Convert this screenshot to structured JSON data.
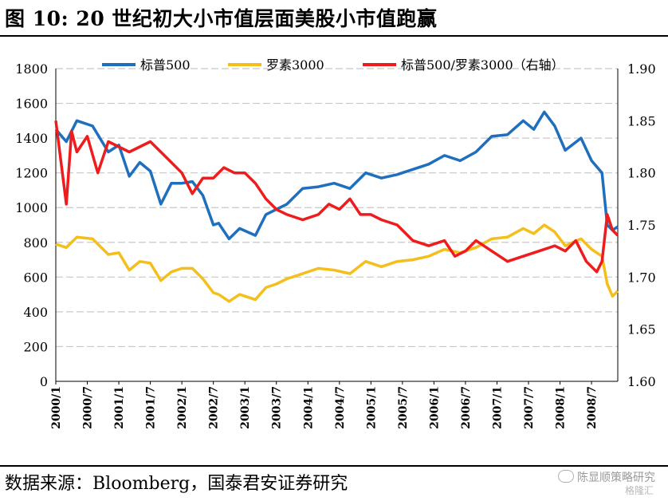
{
  "title": "图 10: 20 世纪初大小市值层面美股小市值跑赢",
  "source": "数据来源：Bloomberg，国泰君安证券研究",
  "watermark": "陈显顺策略研究",
  "watermark2": "格隆汇",
  "watermark_icon": "wechat-icon",
  "chart_data": {
    "type": "line",
    "left_axis": {
      "ylim": [
        0,
        1800
      ],
      "ticks": [
        "0",
        "200",
        "400",
        "600",
        "800",
        "1000",
        "1200",
        "1400",
        "1600",
        "1800"
      ]
    },
    "right_axis": {
      "ylim": [
        1.6,
        1.9
      ],
      "ticks": [
        "1.60",
        "1.65",
        "1.70",
        "1.75",
        "1.80",
        "1.85",
        "1.90"
      ]
    },
    "x_ticks": [
      "2000/1",
      "2000/7",
      "2001/1",
      "2001/7",
      "2002/1",
      "2002/7",
      "2003/1",
      "2003/7",
      "2004/1",
      "2004/7",
      "2005/1",
      "2005/7",
      "2006/1",
      "2006/7",
      "2007/1",
      "2007/7",
      "2008/1",
      "2008/7"
    ],
    "x_range": [
      "2000/1",
      "2008/12"
    ],
    "grid": "horizontal dashed",
    "legend_position": "top",
    "series": [
      {
        "name": "标普500",
        "color": "#1f6fbf",
        "axis": "left",
        "x": [
          "2000/1",
          "2000/3",
          "2000/5",
          "2000/8",
          "2000/11",
          "2001/1",
          "2001/3",
          "2001/5",
          "2001/7",
          "2001/9",
          "2001/11",
          "2002/1",
          "2002/3",
          "2002/5",
          "2002/7",
          "2002/8",
          "2002/10",
          "2002/12",
          "2003/3",
          "2003/5",
          "2003/7",
          "2003/9",
          "2003/12",
          "2004/3",
          "2004/6",
          "2004/9",
          "2004/12",
          "2005/3",
          "2005/6",
          "2005/9",
          "2005/12",
          "2006/3",
          "2006/6",
          "2006/9",
          "2006/12",
          "2007/3",
          "2007/6",
          "2007/8",
          "2007/10",
          "2007/12",
          "2008/2",
          "2008/5",
          "2008/7",
          "2008/9",
          "2008/10",
          "2008/11",
          "2008/12"
        ],
        "values": [
          1450,
          1380,
          1500,
          1470,
          1320,
          1360,
          1180,
          1260,
          1210,
          1020,
          1140,
          1140,
          1150,
          1070,
          900,
          910,
          820,
          880,
          840,
          960,
          990,
          1020,
          1110,
          1120,
          1140,
          1110,
          1200,
          1170,
          1190,
          1220,
          1250,
          1300,
          1270,
          1320,
          1410,
          1420,
          1500,
          1450,
          1550,
          1470,
          1330,
          1400,
          1270,
          1200,
          900,
          870,
          890
        ]
      },
      {
        "name": "罗素3000",
        "color": "#f5bf1b",
        "axis": "left",
        "x": [
          "2000/1",
          "2000/3",
          "2000/5",
          "2000/8",
          "2000/11",
          "2001/1",
          "2001/3",
          "2001/5",
          "2001/7",
          "2001/9",
          "2001/11",
          "2002/1",
          "2002/3",
          "2002/5",
          "2002/7",
          "2002/8",
          "2002/10",
          "2002/12",
          "2003/3",
          "2003/5",
          "2003/7",
          "2003/9",
          "2003/12",
          "2004/3",
          "2004/6",
          "2004/9",
          "2004/12",
          "2005/3",
          "2005/6",
          "2005/9",
          "2005/12",
          "2006/3",
          "2006/6",
          "2006/9",
          "2006/12",
          "2007/3",
          "2007/6",
          "2007/8",
          "2007/10",
          "2007/12",
          "2008/2",
          "2008/5",
          "2008/7",
          "2008/9",
          "2008/10",
          "2008/11",
          "2008/12"
        ],
        "values": [
          790,
          770,
          830,
          820,
          730,
          740,
          640,
          690,
          680,
          580,
          630,
          650,
          650,
          590,
          510,
          500,
          460,
          500,
          470,
          540,
          560,
          590,
          620,
          650,
          640,
          620,
          690,
          660,
          690,
          700,
          720,
          760,
          740,
          770,
          820,
          830,
          880,
          850,
          900,
          860,
          780,
          820,
          760,
          720,
          560,
          490,
          520
        ]
      },
      {
        "name": "标普500/罗素3000（右轴）",
        "color": "#ee1c1c",
        "axis": "right",
        "x": [
          "2000/1",
          "2000/2",
          "2000/3",
          "2000/4",
          "2000/5",
          "2000/7",
          "2000/9",
          "2000/11",
          "2001/1",
          "2001/3",
          "2001/5",
          "2001/7",
          "2001/9",
          "2001/11",
          "2002/1",
          "2002/3",
          "2002/5",
          "2002/7",
          "2002/9",
          "2002/11",
          "2003/1",
          "2003/3",
          "2003/5",
          "2003/7",
          "2003/9",
          "2003/12",
          "2004/3",
          "2004/5",
          "2004/7",
          "2004/9",
          "2004/11",
          "2005/1",
          "2005/3",
          "2005/6",
          "2005/9",
          "2005/12",
          "2006/3",
          "2006/5",
          "2006/7",
          "2006/9",
          "2006/12",
          "2007/3",
          "2007/6",
          "2007/9",
          "2007/12",
          "2008/2",
          "2008/4",
          "2008/6",
          "2008/8",
          "2008/9",
          "2008/10",
          "2008/11",
          "2008/12"
        ],
        "values": [
          1.85,
          1.81,
          1.77,
          1.84,
          1.82,
          1.835,
          1.8,
          1.83,
          1.825,
          1.82,
          1.825,
          1.83,
          1.82,
          1.81,
          1.8,
          1.78,
          1.795,
          1.795,
          1.805,
          1.8,
          1.8,
          1.79,
          1.775,
          1.765,
          1.76,
          1.755,
          1.76,
          1.77,
          1.765,
          1.775,
          1.76,
          1.76,
          1.755,
          1.75,
          1.735,
          1.73,
          1.735,
          1.72,
          1.725,
          1.735,
          1.725,
          1.715,
          1.72,
          1.725,
          1.73,
          1.725,
          1.735,
          1.715,
          1.705,
          1.715,
          1.76,
          1.745,
          1.74
        ]
      }
    ]
  }
}
